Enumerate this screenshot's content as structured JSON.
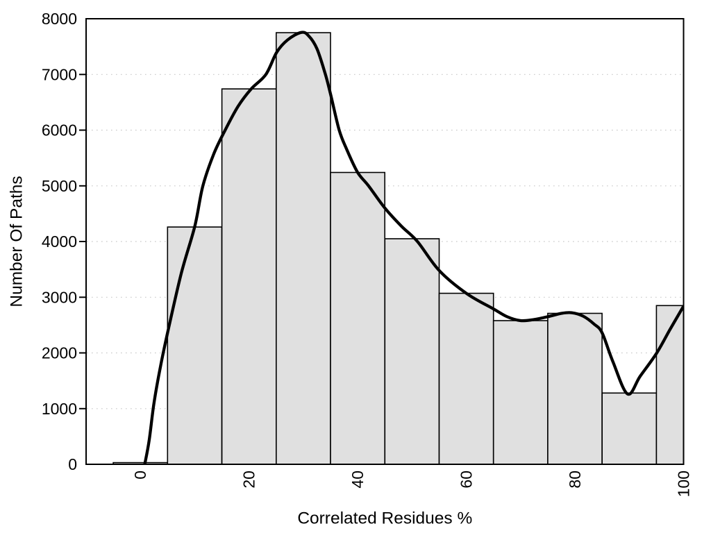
{
  "page": {
    "background": "#ffffff"
  },
  "chart_data": {
    "type": "bar",
    "subtype": "histogram-with-density-curve",
    "title": "",
    "xlabel": "Correlated Residues %",
    "ylabel": "Number Of Paths",
    "xlim": [
      -10,
      100
    ],
    "ylim": [
      0,
      8000
    ],
    "x_tick_labels": [
      "0",
      "20",
      "40",
      "60",
      "80",
      "100"
    ],
    "x_tick_values": [
      0,
      20,
      40,
      60,
      80,
      100
    ],
    "y_tick_labels": [
      "0",
      "1000",
      "2000",
      "3000",
      "4000",
      "5000",
      "6000",
      "7000",
      "8000"
    ],
    "y_tick_values": [
      0,
      1000,
      2000,
      3000,
      4000,
      5000,
      6000,
      7000,
      8000
    ],
    "y_tick_marks": [
      1000,
      2000,
      3000,
      4000,
      5000,
      6000,
      7000
    ],
    "gridlines_y": [
      1000,
      2000,
      3000,
      4000,
      5000,
      6000,
      7000
    ],
    "grid_style": "dotted-horizontal",
    "legend": "none",
    "bars": {
      "bin_edges": [
        -5,
        5,
        15,
        25,
        35,
        45,
        55,
        65,
        75,
        85,
        95,
        100
      ],
      "bin_centers": [
        0,
        10,
        20,
        30,
        40,
        50,
        60,
        70,
        80,
        90,
        100
      ],
      "values": [
        30,
        4260,
        6740,
        7750,
        5240,
        4050,
        3070,
        2580,
        2710,
        1280,
        2850
      ]
    },
    "curve": {
      "description": "smooth density curve over histogram",
      "points": [
        [
          0.8,
          0
        ],
        [
          1.6,
          420
        ],
        [
          2.5,
          1100
        ],
        [
          3.7,
          1760
        ],
        [
          5,
          2360
        ],
        [
          7.5,
          3420
        ],
        [
          10,
          4270
        ],
        [
          11.5,
          5000
        ],
        [
          13.5,
          5570
        ],
        [
          15.6,
          6000
        ],
        [
          18,
          6430
        ],
        [
          20.4,
          6740
        ],
        [
          23.1,
          7000
        ],
        [
          25.1,
          7400
        ],
        [
          27.1,
          7620
        ],
        [
          29.6,
          7755
        ],
        [
          31,
          7690
        ],
        [
          32.5,
          7460
        ],
        [
          34,
          7020
        ],
        [
          35,
          6650
        ],
        [
          36.6,
          6000
        ],
        [
          38,
          5650
        ],
        [
          40,
          5240
        ],
        [
          42,
          5000
        ],
        [
          45,
          4600
        ],
        [
          48,
          4280
        ],
        [
          51,
          4000
        ],
        [
          55,
          3480
        ],
        [
          60,
          3070
        ],
        [
          65,
          2790
        ],
        [
          67.5,
          2650
        ],
        [
          70,
          2580
        ],
        [
          72.5,
          2600
        ],
        [
          75,
          2650
        ],
        [
          77.5,
          2710
        ],
        [
          79.4,
          2722
        ],
        [
          81.5,
          2660
        ],
        [
          83.5,
          2520
        ],
        [
          85,
          2360
        ],
        [
          87,
          1840
        ],
        [
          89.7,
          1262
        ],
        [
          92,
          1580
        ],
        [
          95,
          1990
        ],
        [
          97.5,
          2420
        ],
        [
          100,
          2840
        ]
      ]
    },
    "colors": {
      "bar_fill": "#e0e0e0",
      "bar_edge": "#000000",
      "curve": "#000000",
      "frame": "#000000",
      "grid": "#c8c8c8",
      "text": "#000000",
      "background": "#ffffff"
    }
  }
}
